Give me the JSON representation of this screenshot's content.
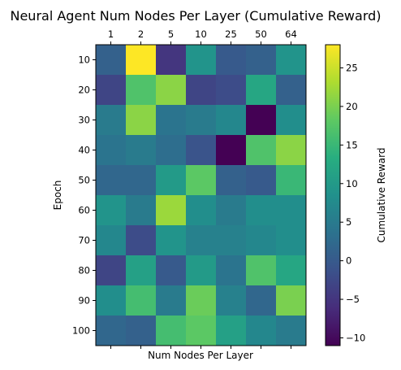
{
  "chart_data": {
    "type": "heatmap",
    "title": "Neural Agent Num Nodes Per Layer (Cumulative Reward)",
    "xlabel": "Num Nodes Per Layer",
    "ylabel": "Epoch",
    "x_categories": [
      "1",
      "2",
      "5",
      "10",
      "25",
      "50",
      "64"
    ],
    "y_categories": [
      "10",
      "20",
      "30",
      "40",
      "50",
      "60",
      "70",
      "80",
      "90",
      "100"
    ],
    "values": [
      [
        1,
        28,
        -5,
        9,
        0,
        1,
        9
      ],
      [
        -3,
        17,
        21,
        -3,
        -2,
        12,
        1
      ],
      [
        5,
        21,
        4,
        5,
        7,
        -11,
        8
      ],
      [
        4,
        5,
        3,
        -1,
        -11,
        17,
        21
      ],
      [
        2,
        2,
        10,
        18,
        1,
        0,
        15
      ],
      [
        9,
        5,
        22,
        8,
        5,
        8,
        8
      ],
      [
        7,
        -2,
        9,
        6,
        6,
        7,
        8
      ],
      [
        -3,
        11,
        0,
        10,
        4,
        17,
        12
      ],
      [
        8,
        16,
        5,
        19,
        6,
        2,
        20
      ],
      [
        2,
        1,
        16,
        18,
        11,
        7,
        5
      ]
    ],
    "colorbar": {
      "label": "Cumulative Reward",
      "min": -11,
      "max": 28,
      "ticks": [
        -10,
        -5,
        0,
        5,
        10,
        15,
        20,
        25
      ],
      "colormap": "viridis"
    },
    "x_ticks_position": "top",
    "grid": false
  }
}
